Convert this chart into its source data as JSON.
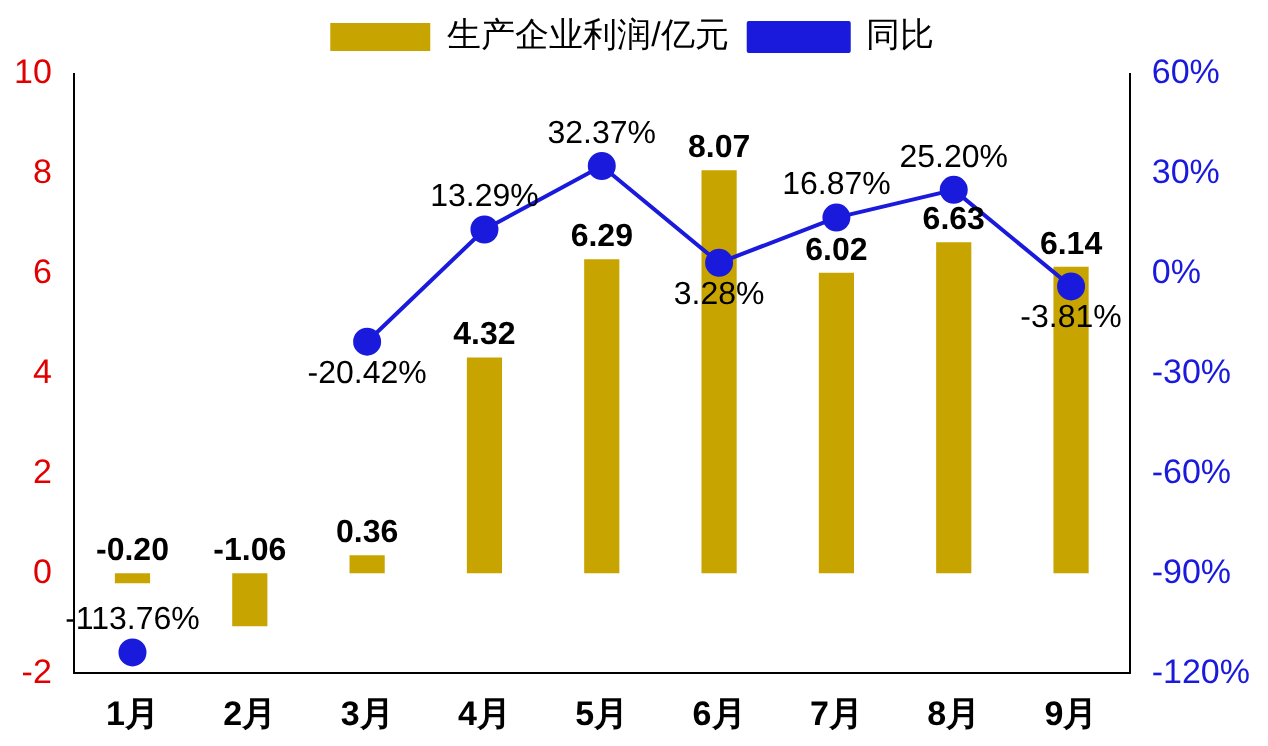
{
  "chart_data": {
    "type": "bar",
    "categories": [
      "1月",
      "2月",
      "3月",
      "4月",
      "5月",
      "6月",
      "7月",
      "8月",
      "9月"
    ],
    "series": [
      {
        "name": "生产企业利润/亿元",
        "color": "#c8a400",
        "values": [
          -0.2,
          -1.06,
          0.36,
          4.32,
          6.29,
          8.07,
          6.02,
          6.63,
          6.14
        ],
        "value_labels": [
          "-0.20",
          "-1.06",
          "0.36",
          "4.32",
          "6.29",
          "8.07",
          "6.02",
          "6.63",
          "6.14"
        ]
      },
      {
        "name": "同比",
        "type": "line",
        "axis": "y2",
        "color": "#1a1adc",
        "values": [
          -113.76,
          null,
          -20.42,
          13.29,
          32.37,
          3.28,
          16.87,
          25.2,
          -3.81
        ],
        "value_labels": [
          "-113.76%",
          null,
          "-20.42%",
          "13.29%",
          "32.37%",
          "3.28%",
          "16.87%",
          "25.20%",
          "-3.81%"
        ]
      }
    ],
    "ylim": [
      -2,
      10
    ],
    "yticks": [
      -2,
      0,
      2,
      4,
      6,
      8,
      10
    ],
    "y2lim": [
      -120,
      60
    ],
    "y2ticks": [
      {
        "value": -120,
        "label": "-120%"
      },
      {
        "value": -90,
        "label": "-90%"
      },
      {
        "value": -60,
        "label": "-60%"
      },
      {
        "value": -30,
        "label": "-30%"
      },
      {
        "value": 0,
        "label": "0%"
      },
      {
        "value": 30,
        "label": "30%"
      },
      {
        "value": 60,
        "label": "60%"
      }
    ],
    "legend": "top",
    "marker": "circle",
    "grid": false
  }
}
